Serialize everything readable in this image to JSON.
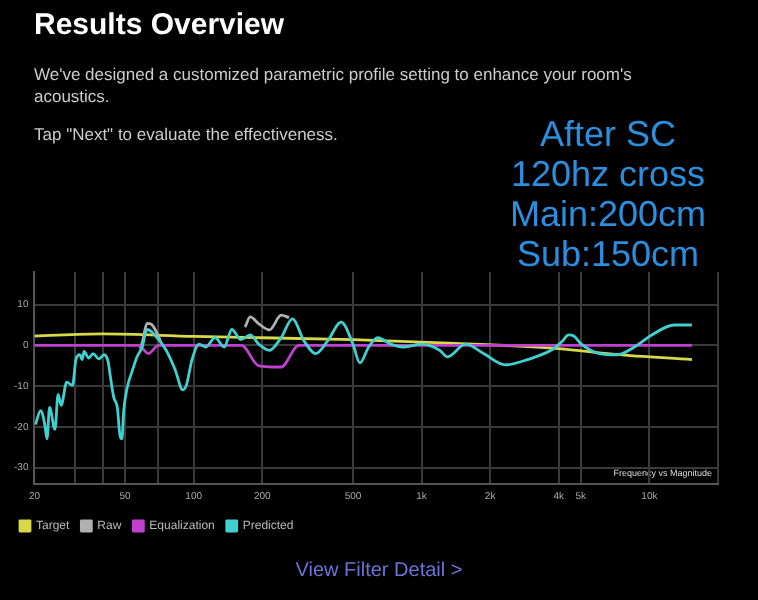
{
  "chart_data": {
    "type": "line",
    "title": "Results Overview",
    "subtitle": "We've designed a customized parametric profile setting to enhance your room's acoustics.",
    "annotations": [
      "Tap \"Next\" to evaluate the effectiveness.",
      "After SC\n120hz cross\nMain:200cm\nSub:150cm",
      "Frequency vs Magnitude",
      "View Filter Detail >"
    ],
    "xlim": [
      20,
      20000
    ],
    "xticks": [
      20,
      {
        "value": 30,
        "label": null
      },
      {
        "value": 40,
        "label": null
      },
      50,
      {
        "value": 70,
        "label": null
      },
      100,
      200,
      500,
      {
        "value": 1000,
        "label": "1k"
      },
      {
        "value": 2000,
        "label": "2k"
      },
      {
        "value": 4000,
        "label": "4k"
      },
      {
        "value": 5000,
        "label": "5k"
      },
      {
        "value": 10000,
        "label": "10k"
      },
      {
        "value": 20000,
        "label": null
      }
    ],
    "ylim": [
      -34,
      18
    ],
    "yticks": [
      -30,
      -20,
      -10,
      0,
      10
    ],
    "log": "x",
    "grid": true,
    "legend": "bottom left",
    "marker": "none",
    "line_style": "solid",
    "series": [
      {
        "name": "Target",
        "color": "#d8d84a",
        "x": [
          20,
          40,
          100,
          500,
          1414,
          4000,
          7070,
          15370
        ],
        "values": [
          2.3,
          2.8,
          2.2,
          1.4,
          0.5,
          -0.8,
          -2.2,
          -3.5
        ]
      },
      {
        "name": "Raw",
        "color": "#b0b0b0",
        "x": [
          58,
          59.4,
          62.4,
          65.2,
          69,
          72,
          100,
          168,
          177,
          193,
          215,
          242,
          262
        ],
        "values": [
          -0.8,
          0.6,
          5.4,
          5.2,
          3,
          0.6,
          null,
          4.5,
          7,
          5.3,
          3.8,
          7.4,
          6.8
        ]
      },
      {
        "name": "Equalization",
        "color": "#c040d0",
        "x": [
          20,
          57.2,
          63.3,
          70,
          162,
          193,
          242,
          289,
          15370
        ],
        "values": [
          0,
          0,
          -2,
          0,
          0,
          -5,
          -5.3,
          0,
          0
        ]
      },
      {
        "name": "Predicted",
        "color": "#40d0d0",
        "x": [
          20.2,
          21.3,
          22.2,
          22.7,
          23.3,
          24.6,
          25.4,
          26.2,
          27.7,
          29.4,
          30.4,
          31.6,
          32.4,
          33,
          34.6,
          36.2,
          38.3,
          40.4,
          42.1,
          43,
          44.6,
          46.2,
          47.5,
          48.4,
          49.3,
          51,
          54,
          56.4,
          59.4,
          62.4,
          65.2,
          69,
          75.7,
          82.8,
          89.5,
          92.8,
          98.3,
          105.7,
          113,
          124,
          136,
          147,
          161,
          177,
          193,
          215,
          242,
          271,
          305,
          343,
          387,
          444,
          500,
          536,
          586,
          642,
          732,
          835,
          1000,
          1200,
          1300,
          1560,
          1870,
          2330,
          2910,
          3780,
          4160,
          4410,
          4660,
          5030,
          6030,
          7220,
          8590,
          10280,
          12830,
          15370
        ],
        "values": [
          -19.4,
          -16,
          -19.4,
          -22.9,
          -15.2,
          -20.6,
          -12,
          -14.7,
          -9,
          -9.8,
          -3.5,
          -2.3,
          -3.5,
          -1.5,
          -3.1,
          -2,
          -3.3,
          -2.3,
          -4,
          -7.4,
          -12.8,
          -15.2,
          -22.2,
          -22.9,
          -16,
          -10.5,
          -5.9,
          -2.8,
          -0.4,
          3.9,
          3.4,
          1.9,
          -1.2,
          -5.9,
          -10.9,
          -9.8,
          -3.5,
          0.3,
          -0.4,
          1.9,
          -0.4,
          3.9,
          1.4,
          2.6,
          0.3,
          -1.2,
          1.9,
          6.5,
          1.1,
          -2,
          1.1,
          5.7,
          0.3,
          -4.3,
          -0.4,
          1.9,
          0.3,
          -0.4,
          0.3,
          -1.2,
          -2.8,
          0.3,
          -2,
          -4.8,
          -3.5,
          -0.9,
          1.1,
          2.6,
          2.3,
          0.3,
          -2,
          -2.3,
          -0.4,
          2.6,
          5,
          5
        ]
      }
    ]
  }
}
